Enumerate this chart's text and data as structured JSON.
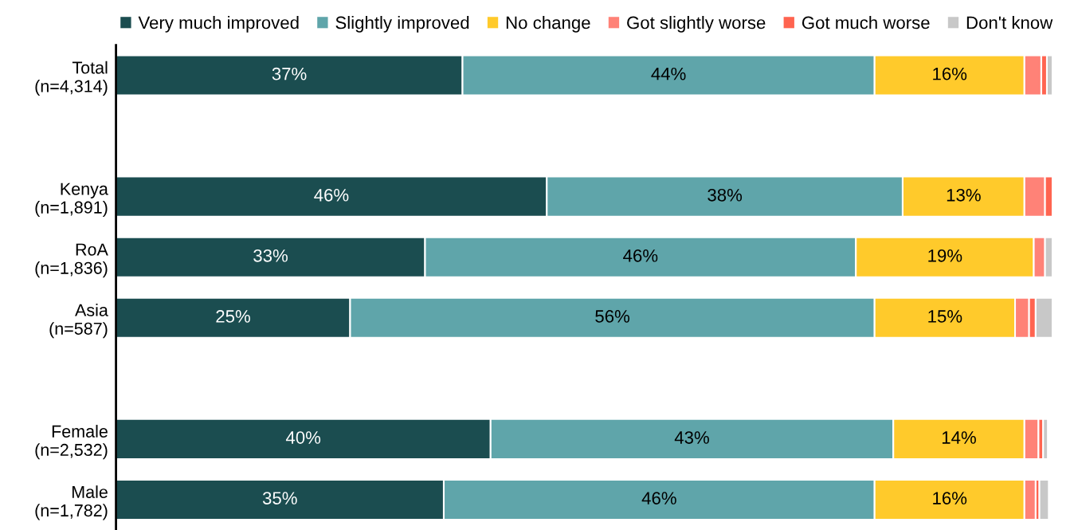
{
  "chart_data": {
    "type": "bar",
    "orientation": "horizontal",
    "stacked": true,
    "legend": "top",
    "tick_labels": "y",
    "grid": false,
    "categories": [
      "Total\n(n=4,314)",
      null,
      "Kenya\n(n=1,891)",
      "RoA\n(n=1,836)",
      "Asia\n(n=587)",
      null,
      "Female\n(n=2,532)",
      "Male\n(n=1,782)"
    ],
    "series": [
      {
        "name": "Very much improved",
        "color": "#1b4d50",
        "values": [
          37,
          null,
          46,
          33,
          25,
          null,
          40,
          35
        ],
        "value_labels": [
          "37%",
          null,
          "46%",
          "33%",
          "25%",
          null,
          "40%",
          "35%"
        ]
      },
      {
        "name": "Slightly improved",
        "color": "#5fa5aa",
        "values": [
          44,
          null,
          38,
          46,
          56,
          null,
          43,
          46
        ],
        "value_labels": [
          "44%",
          null,
          "38%",
          "46%",
          "56%",
          null,
          "43%",
          "46%"
        ]
      },
      {
        "name": "No change",
        "color": "#ffca2b",
        "values": [
          16,
          null,
          13,
          19,
          15,
          null,
          14,
          16
        ],
        "value_labels": [
          "16%",
          null,
          "13%",
          "19%",
          "15%",
          null,
          "14%",
          "16%"
        ]
      },
      {
        "name": "Got slightly worse",
        "color": "#ff8277",
        "values": [
          1.8,
          null,
          2.2,
          1.2,
          1.5,
          null,
          1.5,
          1.2
        ]
      },
      {
        "name": "Got much worse",
        "color": "#ff6450",
        "values": [
          0.6,
          null,
          0.8,
          0,
          0.7,
          null,
          0.5,
          0.4
        ]
      },
      {
        "name": "Don't know",
        "color": "#c8c8c8",
        "values": [
          0.6,
          null,
          0,
          0.8,
          1.8,
          null,
          0.5,
          1.0
        ]
      }
    ]
  }
}
